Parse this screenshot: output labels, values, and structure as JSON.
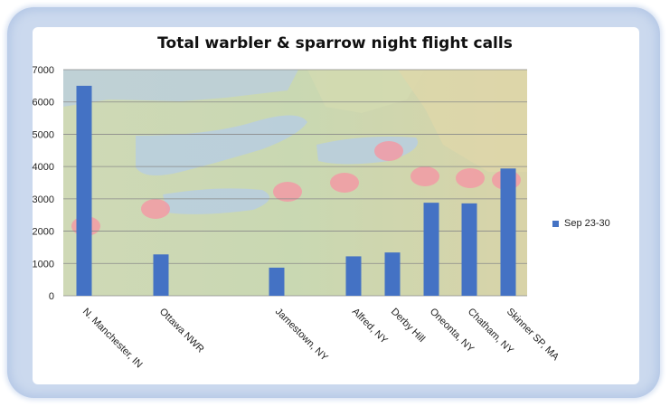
{
  "chart_data": {
    "type": "bar",
    "title": "Total warbler & sparrow night flight calls",
    "categories": [
      "N. Manchester, IN",
      "Ottawa NWR",
      "Jamestown, NY",
      "Alfred, NY",
      "Derby Hill",
      "Oneonta, NY",
      "Chatham, NY",
      "Skinner SP, MA"
    ],
    "series": [
      {
        "name": "Sep 23-30",
        "values": [
          6500,
          1280,
          870,
          1220,
          1340,
          2880,
          2860,
          3940
        ],
        "color": "#4472c4"
      }
    ],
    "yticks": [
      0,
      1000,
      2000,
      3000,
      4000,
      5000,
      6000,
      7000
    ],
    "ylim": [
      0,
      7000
    ],
    "grid": true,
    "legend_position": "right",
    "background": "map of the Great Lakes / northeastern US with pink station markers"
  }
}
